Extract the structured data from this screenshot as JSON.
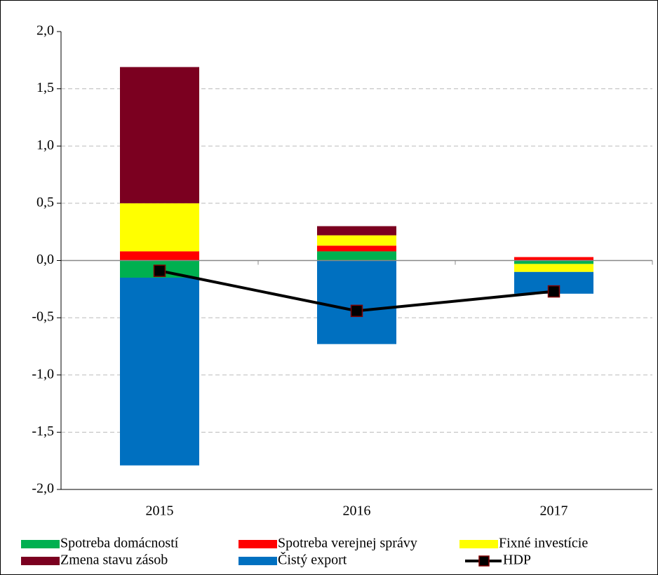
{
  "chart_data": {
    "type": "stacked-bar-line",
    "categories": [
      "2015",
      "2016",
      "2017"
    ],
    "series": [
      {
        "name": "Spotreba domácností",
        "color": "#00b050",
        "values": [
          -0.15,
          0.08,
          -0.03
        ]
      },
      {
        "name": "Spotreba verejnej správy",
        "color": "#ff0000",
        "values": [
          0.08,
          0.05,
          0.03
        ]
      },
      {
        "name": "Fixné investície",
        "color": "#ffff00",
        "values": [
          0.42,
          0.09,
          -0.07
        ]
      },
      {
        "name": "Zmena stavu zásob",
        "color": "#7b0020",
        "values": [
          1.19,
          0.08,
          0
        ]
      },
      {
        "name": "Čistý export",
        "color": "#0070c0",
        "values": [
          -1.64,
          -0.73,
          -0.19
        ]
      }
    ],
    "line": {
      "name": "HDP",
      "color": "#000000",
      "marker_color": "#800000",
      "values": [
        -0.09,
        -0.44,
        -0.27
      ]
    },
    "ylim": [
      -2,
      2
    ],
    "yticks": [
      {
        "value": -2,
        "label": "-2,0"
      },
      {
        "value": -1.5,
        "label": "-1,5"
      },
      {
        "value": -1,
        "label": "-1,0"
      },
      {
        "value": -0.5,
        "label": "-0,5"
      },
      {
        "value": 0,
        "label": "0,0"
      },
      {
        "value": 0.5,
        "label": "0,5"
      },
      {
        "value": 1,
        "label": "1,0"
      },
      {
        "value": 1.5,
        "label": "1,5"
      },
      {
        "value": 2,
        "label": "2,0"
      }
    ],
    "grid": true
  }
}
